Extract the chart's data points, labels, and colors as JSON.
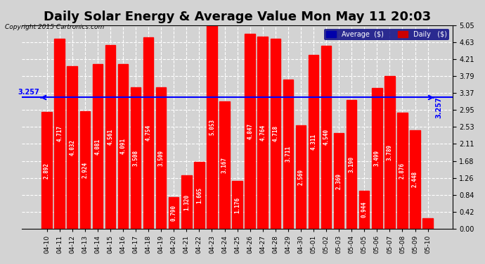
{
  "title": "Daily Solar Energy & Average Value Mon May 11 20:03",
  "copyright": "Copyright 2015 Cartronics.com",
  "categories": [
    "04-10",
    "04-11",
    "04-12",
    "04-13",
    "04-14",
    "04-15",
    "04-16",
    "04-17",
    "04-18",
    "04-19",
    "04-20",
    "04-21",
    "04-22",
    "04-23",
    "04-24",
    "04-25",
    "04-26",
    "04-27",
    "04-28",
    "04-29",
    "04-30",
    "05-01",
    "05-02",
    "05-03",
    "05-04",
    "05-05",
    "05-06",
    "05-07",
    "05-08",
    "05-09",
    "05-10"
  ],
  "values": [
    2.892,
    4.717,
    4.032,
    2.924,
    4.081,
    4.561,
    4.091,
    3.508,
    4.754,
    3.509,
    0.79,
    1.32,
    1.665,
    5.053,
    3.167,
    1.176,
    4.847,
    4.764,
    4.718,
    3.711,
    2.569,
    4.311,
    4.54,
    2.369,
    3.19,
    0.944,
    3.499,
    3.789,
    2.876,
    2.448,
    0.252
  ],
  "average": 3.257,
  "bar_color": "#ff0000",
  "average_line_color": "#0000ff",
  "background_color": "#d3d3d3",
  "plot_background": "#d3d3d3",
  "ylim": [
    0,
    5.05
  ],
  "yticks": [
    0.0,
    0.42,
    0.84,
    1.26,
    1.68,
    2.11,
    2.53,
    2.95,
    3.37,
    3.79,
    4.21,
    4.63,
    5.05
  ],
  "grid_color": "white",
  "title_fontsize": 13,
  "legend_avg_color": "#0000aa",
  "legend_daily_color": "#cc0000",
  "avg_label": "Average  ($)",
  "daily_label": "Daily   ($)"
}
